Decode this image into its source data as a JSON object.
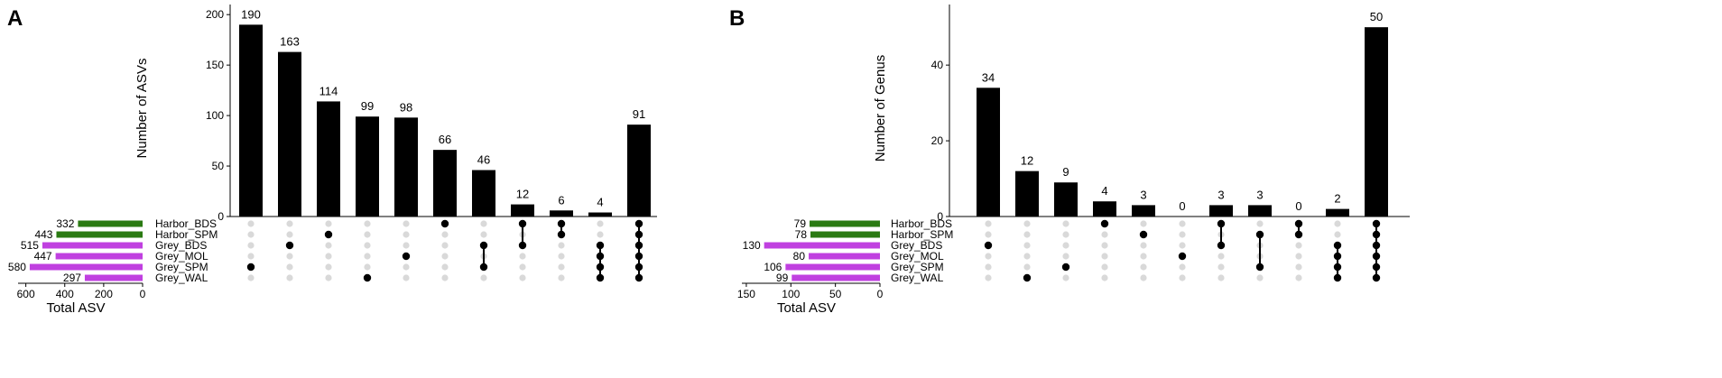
{
  "chart_data": [
    {
      "panel_label": "A",
      "type": "bar",
      "ylabel": "Number of ASVs",
      "ylim": [
        0,
        210
      ],
      "yticks": [
        0,
        50,
        100,
        150,
        200
      ],
      "intersection_values": [
        190,
        163,
        114,
        99,
        98,
        66,
        46,
        12,
        6,
        4,
        91
      ],
      "intersections": [
        [
          "Grey_SPM"
        ],
        [
          "Grey_BDS"
        ],
        [
          "Harbor_SPM"
        ],
        [
          "Grey_WAL"
        ],
        [
          "Grey_MOL"
        ],
        [
          "Harbor_BDS"
        ],
        [
          "Grey_BDS",
          "Grey_SPM"
        ],
        [
          "Harbor_BDS",
          "Grey_BDS"
        ],
        [
          "Harbor_BDS",
          "Harbor_SPM"
        ],
        [
          "Grey_BDS",
          "Grey_MOL",
          "Grey_SPM",
          "Grey_WAL"
        ],
        [
          "Harbor_BDS",
          "Harbor_SPM",
          "Grey_BDS",
          "Grey_MOL",
          "Grey_SPM",
          "Grey_WAL"
        ]
      ],
      "sets": [
        {
          "name": "Harbor_BDS",
          "total": 332,
          "color": "#2a7a12"
        },
        {
          "name": "Harbor_SPM",
          "total": 443,
          "color": "#2a7a12"
        },
        {
          "name": "Grey_BDS",
          "total": 515,
          "color": "#c040e0"
        },
        {
          "name": "Grey_MOL",
          "total": 447,
          "color": "#c040e0"
        },
        {
          "name": "Grey_SPM",
          "total": 580,
          "color": "#c040e0"
        },
        {
          "name": "Grey_WAL",
          "total": 297,
          "color": "#c040e0"
        }
      ],
      "set_xlabel": "Total ASV",
      "set_xlim": [
        0,
        640
      ],
      "set_xticks": [
        600,
        400,
        200,
        0
      ]
    },
    {
      "panel_label": "B",
      "type": "bar",
      "ylabel": "Number of Genus",
      "ylim": [
        0,
        56
      ],
      "yticks": [
        0,
        20,
        40
      ],
      "intersection_values": [
        34,
        12,
        9,
        4,
        3,
        0,
        3,
        3,
        0,
        2,
        50
      ],
      "intersections": [
        [
          "Grey_BDS"
        ],
        [
          "Grey_WAL"
        ],
        [
          "Grey_SPM"
        ],
        [
          "Harbor_BDS"
        ],
        [
          "Harbor_SPM"
        ],
        [
          "Grey_MOL"
        ],
        [
          "Harbor_BDS",
          "Grey_BDS"
        ],
        [
          "Harbor_SPM",
          "Grey_SPM"
        ],
        [
          "Harbor_BDS",
          "Harbor_SPM"
        ],
        [
          "Grey_BDS",
          "Grey_MOL",
          "Grey_SPM",
          "Grey_WAL"
        ],
        [
          "Harbor_BDS",
          "Harbor_SPM",
          "Grey_BDS",
          "Grey_MOL",
          "Grey_SPM",
          "Grey_WAL"
        ]
      ],
      "sets": [
        {
          "name": "Harbor_BDS",
          "total": 79,
          "color": "#2a7a12"
        },
        {
          "name": "Harbor_SPM",
          "total": 78,
          "color": "#2a7a12"
        },
        {
          "name": "Grey_BDS",
          "total": 130,
          "color": "#c040e0"
        },
        {
          "name": "Grey_MOL",
          "total": 80,
          "color": "#c040e0"
        },
        {
          "name": "Grey_SPM",
          "total": 106,
          "color": "#c040e0"
        },
        {
          "name": "Grey_WAL",
          "total": 99,
          "color": "#c040e0"
        }
      ],
      "set_xlabel": "Total ASV",
      "set_xlim": [
        0,
        155
      ],
      "set_xticks": [
        150,
        100,
        50,
        0
      ]
    }
  ],
  "colors": {
    "bar": "#000000",
    "dot_active": "#000000",
    "dot_inactive": "#d9d9d9",
    "axis": "#000000"
  }
}
